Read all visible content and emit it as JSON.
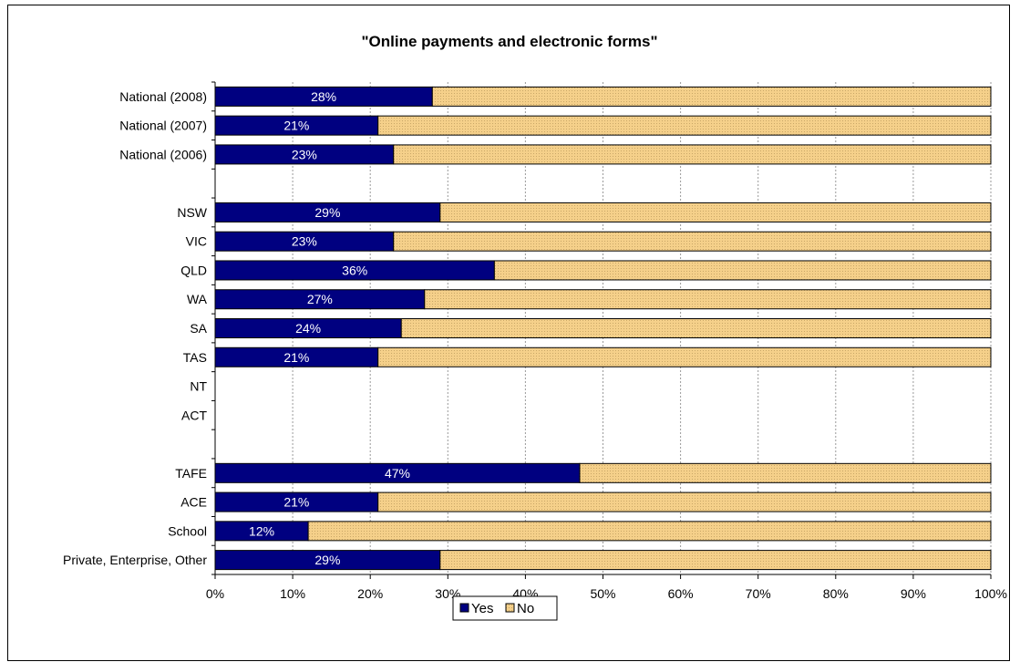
{
  "chart_data": {
    "type": "bar",
    "orientation": "horizontal",
    "stacked": true,
    "title": "\"Online payments and electronic forms\"",
    "xlabel": "",
    "ylabel": "",
    "xlim": [
      0,
      100
    ],
    "x_ticks": [
      "0%",
      "10%",
      "20%",
      "30%",
      "40%",
      "50%",
      "60%",
      "70%",
      "80%",
      "90%",
      "100%"
    ],
    "grid": "vertical dashed",
    "legend_position": "bottom",
    "categories": [
      "National (2008)",
      "National (2007)",
      "National (2006)",
      "",
      "NSW",
      "VIC",
      "QLD",
      "WA",
      "SA",
      "TAS",
      "NT",
      "ACT",
      "",
      "TAFE",
      "ACE",
      "School",
      "Private, Enterprise, Other"
    ],
    "series": [
      {
        "name": "Yes",
        "color": "#000080",
        "values": [
          28,
          21,
          23,
          null,
          29,
          23,
          36,
          27,
          24,
          21,
          null,
          null,
          null,
          47,
          21,
          12,
          29
        ],
        "labels": [
          "28%",
          "21%",
          "23%",
          "",
          "29%",
          "23%",
          "36%",
          "27%",
          "24%",
          "21%",
          "",
          "",
          "",
          "47%",
          "21%",
          "12%",
          "29%"
        ]
      },
      {
        "name": "No",
        "color": "#f5d08a",
        "values": [
          72,
          79,
          77,
          null,
          71,
          77,
          64,
          73,
          76,
          79,
          null,
          null,
          null,
          53,
          79,
          88,
          71
        ]
      }
    ]
  }
}
